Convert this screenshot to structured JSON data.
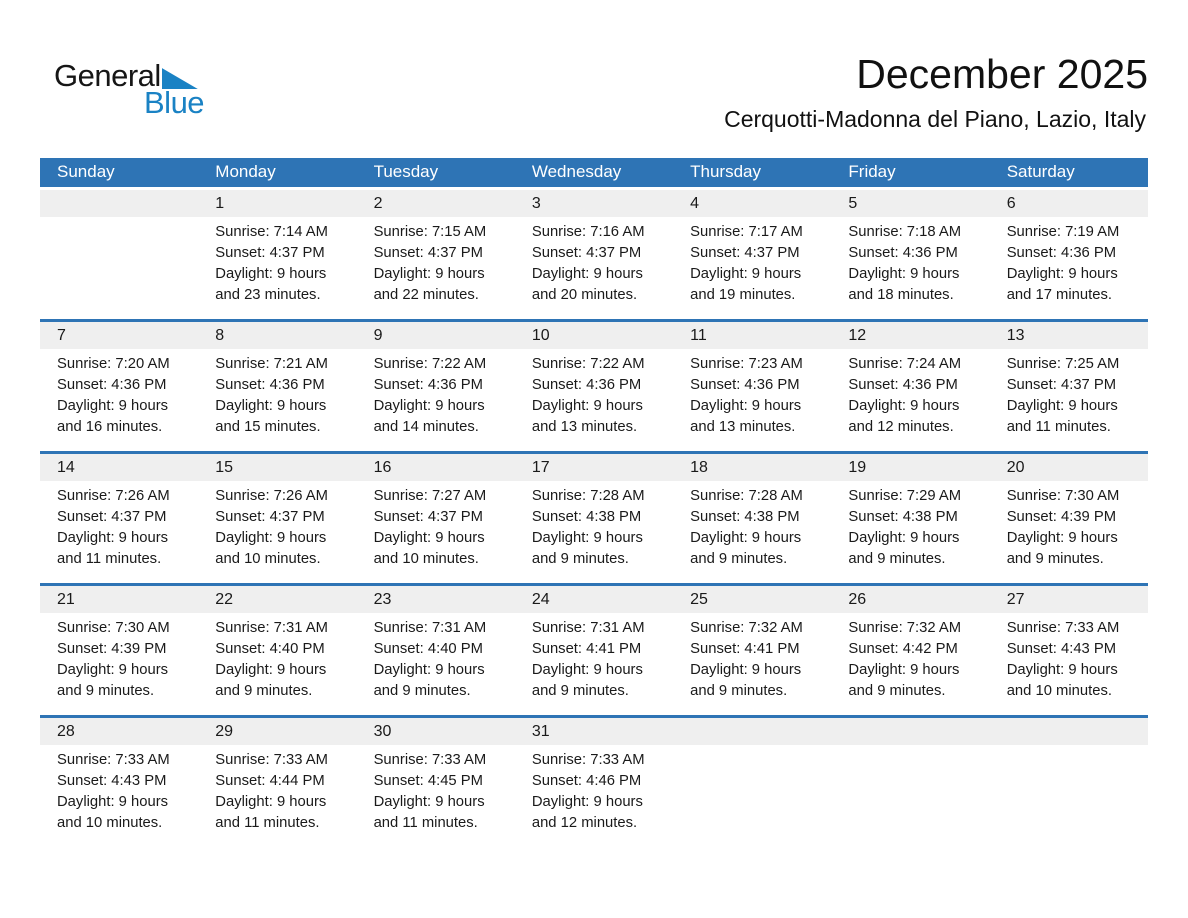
{
  "logo": {
    "general": "General",
    "blue": "Blue"
  },
  "header": {
    "title": "December 2025",
    "subtitle": "Cerquotti-Madonna del Piano, Lazio, Italy"
  },
  "colors": {
    "header_blue": "#2e74b5",
    "logo_blue": "#1a82c4",
    "day_band_gray": "#efefef",
    "text": "#1a1a1a"
  },
  "calendar": {
    "weekdays": [
      "Sunday",
      "Monday",
      "Tuesday",
      "Wednesday",
      "Thursday",
      "Friday",
      "Saturday"
    ],
    "weeks": [
      [
        {
          "day": "",
          "lines": []
        },
        {
          "day": "1",
          "lines": [
            "Sunrise: 7:14 AM",
            "Sunset: 4:37 PM",
            "Daylight: 9 hours",
            "and 23 minutes."
          ]
        },
        {
          "day": "2",
          "lines": [
            "Sunrise: 7:15 AM",
            "Sunset: 4:37 PM",
            "Daylight: 9 hours",
            "and 22 minutes."
          ]
        },
        {
          "day": "3",
          "lines": [
            "Sunrise: 7:16 AM",
            "Sunset: 4:37 PM",
            "Daylight: 9 hours",
            "and 20 minutes."
          ]
        },
        {
          "day": "4",
          "lines": [
            "Sunrise: 7:17 AM",
            "Sunset: 4:37 PM",
            "Daylight: 9 hours",
            "and 19 minutes."
          ]
        },
        {
          "day": "5",
          "lines": [
            "Sunrise: 7:18 AM",
            "Sunset: 4:36 PM",
            "Daylight: 9 hours",
            "and 18 minutes."
          ]
        },
        {
          "day": "6",
          "lines": [
            "Sunrise: 7:19 AM",
            "Sunset: 4:36 PM",
            "Daylight: 9 hours",
            "and 17 minutes."
          ]
        }
      ],
      [
        {
          "day": "7",
          "lines": [
            "Sunrise: 7:20 AM",
            "Sunset: 4:36 PM",
            "Daylight: 9 hours",
            "and 16 minutes."
          ]
        },
        {
          "day": "8",
          "lines": [
            "Sunrise: 7:21 AM",
            "Sunset: 4:36 PM",
            "Daylight: 9 hours",
            "and 15 minutes."
          ]
        },
        {
          "day": "9",
          "lines": [
            "Sunrise: 7:22 AM",
            "Sunset: 4:36 PM",
            "Daylight: 9 hours",
            "and 14 minutes."
          ]
        },
        {
          "day": "10",
          "lines": [
            "Sunrise: 7:22 AM",
            "Sunset: 4:36 PM",
            "Daylight: 9 hours",
            "and 13 minutes."
          ]
        },
        {
          "day": "11",
          "lines": [
            "Sunrise: 7:23 AM",
            "Sunset: 4:36 PM",
            "Daylight: 9 hours",
            "and 13 minutes."
          ]
        },
        {
          "day": "12",
          "lines": [
            "Sunrise: 7:24 AM",
            "Sunset: 4:36 PM",
            "Daylight: 9 hours",
            "and 12 minutes."
          ]
        },
        {
          "day": "13",
          "lines": [
            "Sunrise: 7:25 AM",
            "Sunset: 4:37 PM",
            "Daylight: 9 hours",
            "and 11 minutes."
          ]
        }
      ],
      [
        {
          "day": "14",
          "lines": [
            "Sunrise: 7:26 AM",
            "Sunset: 4:37 PM",
            "Daylight: 9 hours",
            "and 11 minutes."
          ]
        },
        {
          "day": "15",
          "lines": [
            "Sunrise: 7:26 AM",
            "Sunset: 4:37 PM",
            "Daylight: 9 hours",
            "and 10 minutes."
          ]
        },
        {
          "day": "16",
          "lines": [
            "Sunrise: 7:27 AM",
            "Sunset: 4:37 PM",
            "Daylight: 9 hours",
            "and 10 minutes."
          ]
        },
        {
          "day": "17",
          "lines": [
            "Sunrise: 7:28 AM",
            "Sunset: 4:38 PM",
            "Daylight: 9 hours",
            "and 9 minutes."
          ]
        },
        {
          "day": "18",
          "lines": [
            "Sunrise: 7:28 AM",
            "Sunset: 4:38 PM",
            "Daylight: 9 hours",
            "and 9 minutes."
          ]
        },
        {
          "day": "19",
          "lines": [
            "Sunrise: 7:29 AM",
            "Sunset: 4:38 PM",
            "Daylight: 9 hours",
            "and 9 minutes."
          ]
        },
        {
          "day": "20",
          "lines": [
            "Sunrise: 7:30 AM",
            "Sunset: 4:39 PM",
            "Daylight: 9 hours",
            "and 9 minutes."
          ]
        }
      ],
      [
        {
          "day": "21",
          "lines": [
            "Sunrise: 7:30 AM",
            "Sunset: 4:39 PM",
            "Daylight: 9 hours",
            "and 9 minutes."
          ]
        },
        {
          "day": "22",
          "lines": [
            "Sunrise: 7:31 AM",
            "Sunset: 4:40 PM",
            "Daylight: 9 hours",
            "and 9 minutes."
          ]
        },
        {
          "day": "23",
          "lines": [
            "Sunrise: 7:31 AM",
            "Sunset: 4:40 PM",
            "Daylight: 9 hours",
            "and 9 minutes."
          ]
        },
        {
          "day": "24",
          "lines": [
            "Sunrise: 7:31 AM",
            "Sunset: 4:41 PM",
            "Daylight: 9 hours",
            "and 9 minutes."
          ]
        },
        {
          "day": "25",
          "lines": [
            "Sunrise: 7:32 AM",
            "Sunset: 4:41 PM",
            "Daylight: 9 hours",
            "and 9 minutes."
          ]
        },
        {
          "day": "26",
          "lines": [
            "Sunrise: 7:32 AM",
            "Sunset: 4:42 PM",
            "Daylight: 9 hours",
            "and 9 minutes."
          ]
        },
        {
          "day": "27",
          "lines": [
            "Sunrise: 7:33 AM",
            "Sunset: 4:43 PM",
            "Daylight: 9 hours",
            "and 10 minutes."
          ]
        }
      ],
      [
        {
          "day": "28",
          "lines": [
            "Sunrise: 7:33 AM",
            "Sunset: 4:43 PM",
            "Daylight: 9 hours",
            "and 10 minutes."
          ]
        },
        {
          "day": "29",
          "lines": [
            "Sunrise: 7:33 AM",
            "Sunset: 4:44 PM",
            "Daylight: 9 hours",
            "and 11 minutes."
          ]
        },
        {
          "day": "30",
          "lines": [
            "Sunrise: 7:33 AM",
            "Sunset: 4:45 PM",
            "Daylight: 9 hours",
            "and 11 minutes."
          ]
        },
        {
          "day": "31",
          "lines": [
            "Sunrise: 7:33 AM",
            "Sunset: 4:46 PM",
            "Daylight: 9 hours",
            "and 12 minutes."
          ]
        },
        {
          "day": "",
          "lines": []
        },
        {
          "day": "",
          "lines": []
        },
        {
          "day": "",
          "lines": []
        }
      ]
    ]
  }
}
